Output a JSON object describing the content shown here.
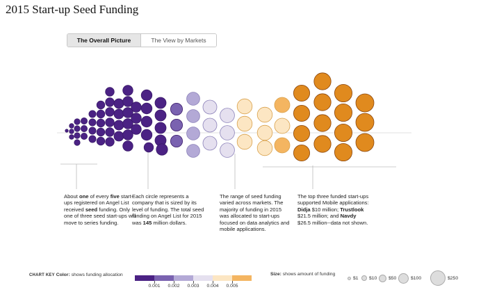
{
  "title": "2015 Start-up Seed Funding",
  "tabs": [
    {
      "label": "The Overall Picture",
      "active": true
    },
    {
      "label": "The View by Markets",
      "active": false
    }
  ],
  "annotations": [
    {
      "parts": [
        [
          "About ",
          0
        ],
        [
          "one",
          1
        ],
        [
          " of every ",
          0
        ],
        [
          "five",
          1
        ],
        [
          " start-ups registered on Angel List received ",
          0
        ],
        [
          "seed",
          1
        ],
        [
          " funding. Only one of three seed start-ups will move to series funding.",
          0
        ]
      ]
    },
    {
      "parts": [
        [
          "Each circle represents a company that is sized by its level of funding. The total seed funding on Angel List for 2015 was ",
          0
        ],
        [
          "145",
          1
        ],
        [
          " million dollars.",
          0
        ]
      ]
    },
    {
      "parts": [
        [
          "The range of seed funding varied across markets. The majority of funding in 2015 was allocated to start-ups focused on data analytics and mobile applications.",
          0
        ]
      ]
    },
    {
      "parts": [
        [
          "The top three funded start-ups supported Mobile applications: ",
          0
        ],
        [
          "Didja",
          1
        ],
        [
          " $10 million; ",
          0
        ],
        [
          "Trustlook",
          1
        ],
        [
          " $21.5 million; and ",
          0
        ],
        [
          "Navdy",
          1
        ],
        [
          " $26.5 million--data not shown.",
          0
        ]
      ]
    }
  ],
  "chart_key": {
    "label": "CHART KEY",
    "color_label": "Color:",
    "color_desc": " shows funding allocation",
    "colors": [
      "#4b2284",
      "#7a62b0",
      "#b3a9d6",
      "#e5e0ef",
      "#fce6c3",
      "#f4b561",
      "#e08a1e",
      "#b45c10"
    ],
    "tick_labels": [
      "0.001",
      "0.002",
      "0.003",
      "0.004",
      "0.005"
    ]
  },
  "size_key": {
    "label": "Size:",
    "desc": " shows amount of funding",
    "items": [
      "$1",
      "$10",
      "$50",
      "$100",
      "$250"
    ]
  },
  "swatches": {
    "dark_purple": "#4b2284",
    "mid_purple": "#7a62b0",
    "lavender": "#b3a9d6",
    "pale_lavender": "#e5e0ef",
    "cream": "#fce6c3",
    "light_orange": "#f4b561",
    "orange": "#e08a1e",
    "dark_orange": "#b45c10"
  }
}
